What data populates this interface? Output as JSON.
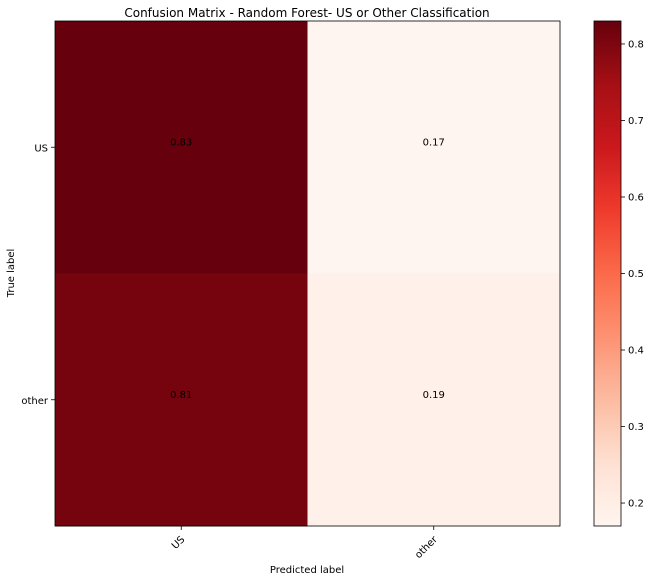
{
  "chart_data": {
    "type": "heatmap",
    "title": "Confusion Matrix - Random Forest- US or Other Classification",
    "xlabel": "Predicted label",
    "ylabel": "True label",
    "row_labels": [
      "US",
      "other"
    ],
    "col_labels": [
      "US",
      "other"
    ],
    "matrix": [
      [
        0.83,
        0.17
      ],
      [
        0.81,
        0.19
      ]
    ],
    "value_labels": [
      [
        "0.83",
        "0.17"
      ],
      [
        "0.81",
        "0.19"
      ]
    ],
    "colormap": "Reds",
    "colorbar": {
      "range": [
        0.17,
        0.83
      ],
      "ticks": [
        0.2,
        0.3,
        0.4,
        0.5,
        0.6,
        0.7,
        0.8
      ],
      "tick_labels": [
        "0.2",
        "0.3",
        "0.4",
        "0.5",
        "0.6",
        "0.7",
        "0.8"
      ]
    },
    "x_tick_rotation": "45 degrees",
    "grid": false,
    "legend": "colorbar right"
  }
}
